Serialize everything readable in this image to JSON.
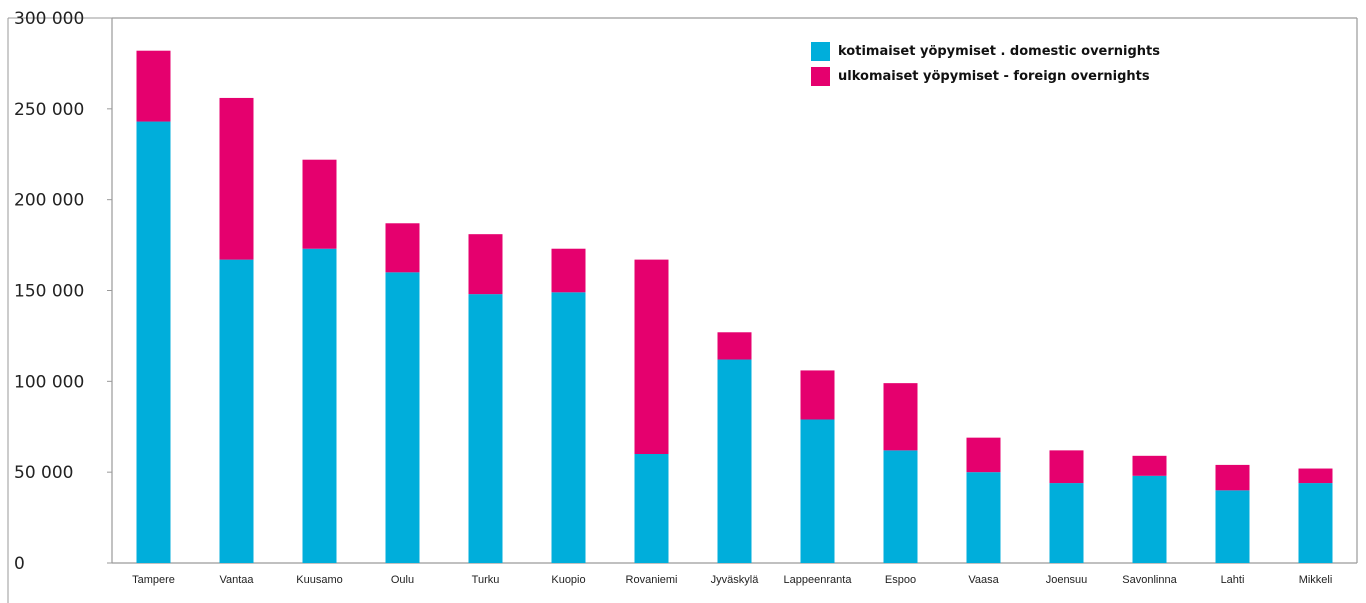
{
  "chart_data": {
    "type": "bar",
    "stacked": true,
    "categories": [
      "Tampere",
      "Vantaa",
      "Kuusamo",
      "Oulu",
      "Turku",
      "Kuopio",
      "Rovaniemi",
      "Jyväskylä",
      "Lappeenranta",
      "Espoo",
      "Vaasa",
      "Joensuu",
      "Savonlinna",
      "Lahti",
      "Mikkeli"
    ],
    "series": [
      {
        "name": "kotimaiset yöpymiset . domestic overnights",
        "color": "#00aedb",
        "values": [
          243000,
          167000,
          173000,
          160000,
          148000,
          149000,
          60000,
          112000,
          79000,
          62000,
          50000,
          44000,
          48000,
          40000,
          44000
        ]
      },
      {
        "name": "ulkomaiset yöpymiset - foreign overnights",
        "color": "#e5006e",
        "values": [
          39000,
          89000,
          49000,
          27000,
          33000,
          24000,
          107000,
          15000,
          27000,
          37000,
          19000,
          18000,
          11000,
          14000,
          8000
        ]
      }
    ],
    "ylim": [
      0,
      300000
    ],
    "yticks": [
      0,
      50000,
      100000,
      150000,
      200000,
      250000,
      300000
    ],
    "ytick_labels": [
      "0",
      "50 000",
      "100 000",
      "150 000",
      "200 000",
      "250 000",
      "300 000"
    ],
    "grid": false,
    "legend": "top-right",
    "title": "",
    "xlabel": "",
    "ylabel": ""
  }
}
